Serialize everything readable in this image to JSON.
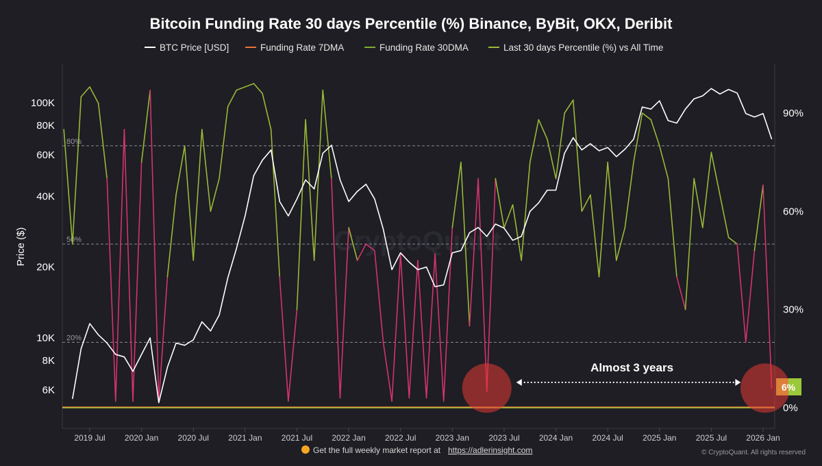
{
  "chart_data": {
    "type": "line",
    "title": "Bitcoin Funding Rate 30 days Percentile (%) Binance, ByBit, OKX, Deribit",
    "ylabel": "Price ($)",
    "y_scale": "log",
    "ylim": [
      5000,
      200000
    ],
    "y2lim": [
      0,
      105
    ],
    "legend": {
      "position": "top-center",
      "entries": [
        {
          "name": "BTC Price [USD]",
          "color": "#ffffff"
        },
        {
          "name": "Funding Rate 7DMA",
          "color": "#e8743b"
        },
        {
          "name": "Funding Rate 30DMA",
          "color": "#7fae2e"
        },
        {
          "name": "Last 30 days Percentile (%) vs All Time",
          "color": "#9ab838"
        }
      ]
    },
    "x_ticks": [
      "2019 Jul",
      "2020 Jan",
      "2020 Jul",
      "2021 Jan",
      "2021 Jul",
      "2022 Jan",
      "2022 Jul",
      "2023 Jan",
      "2023 Jul",
      "2024 Jan",
      "2024 Jul",
      "2025 Jan",
      "2025 Jul",
      "2026 Jan"
    ],
    "y_ticks_left": [
      "100K",
      "80K",
      "60K",
      "40K",
      "20K",
      "10K",
      "8K",
      "6K"
    ],
    "y_ticks_left_values": [
      100000,
      80000,
      60000,
      40000,
      20000,
      10000,
      8000,
      6000
    ],
    "y_ticks_right": [
      "90%",
      "60%",
      "30%",
      "0%"
    ],
    "y_ticks_right_values": [
      90,
      60,
      30,
      0
    ],
    "reference_lines": [
      {
        "label": "80%",
        "value": 80
      },
      {
        "label": "50%",
        "value": 50
      },
      {
        "label": "20%",
        "value": 20
      }
    ],
    "pct_color_above_50": "#9ab838",
    "pct_color_below_50": "#d4336e",
    "btc_price": [
      [
        "2019-05",
        5500
      ],
      [
        "2019-06",
        9000
      ],
      [
        "2019-07",
        11500
      ],
      [
        "2019-08",
        10300
      ],
      [
        "2019-09",
        9500
      ],
      [
        "2019-10",
        8500
      ],
      [
        "2019-11",
        8300
      ],
      [
        "2019-12",
        7200
      ],
      [
        "2020-01",
        8500
      ],
      [
        "2020-02",
        10000
      ],
      [
        "2020-03",
        5300
      ],
      [
        "2020-04",
        7500
      ],
      [
        "2020-05",
        9500
      ],
      [
        "2020-06",
        9300
      ],
      [
        "2020-07",
        9800
      ],
      [
        "2020-08",
        11700
      ],
      [
        "2020-09",
        10700
      ],
      [
        "2020-10",
        12500
      ],
      [
        "2020-11",
        18000
      ],
      [
        "2020-12",
        24000
      ],
      [
        "2021-01",
        33000
      ],
      [
        "2021-02",
        49000
      ],
      [
        "2021-03",
        57000
      ],
      [
        "2021-04",
        63000
      ],
      [
        "2021-05",
        38000
      ],
      [
        "2021-06",
        33000
      ],
      [
        "2021-07",
        39000
      ],
      [
        "2021-08",
        47000
      ],
      [
        "2021-09",
        43000
      ],
      [
        "2021-10",
        61000
      ],
      [
        "2021-11",
        66000
      ],
      [
        "2021-12",
        47000
      ],
      [
        "2022-01",
        38000
      ],
      [
        "2022-02",
        42000
      ],
      [
        "2022-03",
        45000
      ],
      [
        "2022-04",
        39000
      ],
      [
        "2022-05",
        29000
      ],
      [
        "2022-06",
        19500
      ],
      [
        "2022-07",
        23000
      ],
      [
        "2022-08",
        21000
      ],
      [
        "2022-09",
        19500
      ],
      [
        "2022-10",
        20000
      ],
      [
        "2022-11",
        16500
      ],
      [
        "2022-12",
        16800
      ],
      [
        "2023-01",
        23000
      ],
      [
        "2023-02",
        23500
      ],
      [
        "2023-03",
        28000
      ],
      [
        "2023-04",
        29500
      ],
      [
        "2023-05",
        27000
      ],
      [
        "2023-06",
        30500
      ],
      [
        "2023-07",
        29300
      ],
      [
        "2023-08",
        26000
      ],
      [
        "2023-09",
        27000
      ],
      [
        "2023-10",
        34500
      ],
      [
        "2023-11",
        37500
      ],
      [
        "2023-12",
        42500
      ],
      [
        "2024-01",
        42500
      ],
      [
        "2024-02",
        61000
      ],
      [
        "2024-03",
        71000
      ],
      [
        "2024-04",
        63000
      ],
      [
        "2024-05",
        67000
      ],
      [
        "2024-06",
        62500
      ],
      [
        "2024-07",
        64500
      ],
      [
        "2024-08",
        59000
      ],
      [
        "2024-09",
        63500
      ],
      [
        "2024-10",
        70000
      ],
      [
        "2024-11",
        96000
      ],
      [
        "2024-12",
        94000
      ],
      [
        "2025-01",
        102000
      ],
      [
        "2025-02",
        84000
      ],
      [
        "2025-03",
        82000
      ],
      [
        "2025-04",
        94000
      ],
      [
        "2025-05",
        104000
      ],
      [
        "2025-06",
        107000
      ],
      [
        "2025-07",
        115000
      ],
      [
        "2025-08",
        109000
      ],
      [
        "2025-09",
        114000
      ],
      [
        "2025-10",
        110000
      ],
      [
        "2025-11",
        90000
      ],
      [
        "2025-12",
        87000
      ],
      [
        "2026-01",
        90000
      ],
      [
        "2026-02",
        70000
      ]
    ],
    "percentile": [
      [
        "2019-04",
        85
      ],
      [
        "2019-05",
        50
      ],
      [
        "2019-06",
        95
      ],
      [
        "2019-07",
        98
      ],
      [
        "2019-08",
        93
      ],
      [
        "2019-09",
        70
      ],
      [
        "2019-10",
        2
      ],
      [
        "2019-11",
        85
      ],
      [
        "2019-12",
        2
      ],
      [
        "2020-01",
        75
      ],
      [
        "2020-02",
        97
      ],
      [
        "2020-03",
        2
      ],
      [
        "2020-04",
        40
      ],
      [
        "2020-05",
        65
      ],
      [
        "2020-06",
        80
      ],
      [
        "2020-07",
        45
      ],
      [
        "2020-08",
        85
      ],
      [
        "2020-09",
        60
      ],
      [
        "2020-10",
        70
      ],
      [
        "2020-11",
        92
      ],
      [
        "2020-12",
        97
      ],
      [
        "2021-01",
        98
      ],
      [
        "2021-02",
        99
      ],
      [
        "2021-03",
        96
      ],
      [
        "2021-04",
        85
      ],
      [
        "2021-05",
        40
      ],
      [
        "2021-06",
        2
      ],
      [
        "2021-07",
        30
      ],
      [
        "2021-08",
        88
      ],
      [
        "2021-09",
        45
      ],
      [
        "2021-10",
        97
      ],
      [
        "2021-11",
        70
      ],
      [
        "2021-12",
        3
      ],
      [
        "2022-01",
        55
      ],
      [
        "2022-02",
        45
      ],
      [
        "2022-03",
        50
      ],
      [
        "2022-04",
        48
      ],
      [
        "2022-05",
        20
      ],
      [
        "2022-06",
        2
      ],
      [
        "2022-07",
        47
      ],
      [
        "2022-08",
        3
      ],
      [
        "2022-09",
        45
      ],
      [
        "2022-10",
        3
      ],
      [
        "2022-11",
        47
      ],
      [
        "2022-12",
        2
      ],
      [
        "2023-01",
        55
      ],
      [
        "2023-02",
        75
      ],
      [
        "2023-03",
        25
      ],
      [
        "2023-04",
        70
      ],
      [
        "2023-05",
        5
      ],
      [
        "2023-06",
        70
      ],
      [
        "2023-07",
        55
      ],
      [
        "2023-08",
        62
      ],
      [
        "2023-09",
        45
      ],
      [
        "2023-10",
        75
      ],
      [
        "2023-11",
        88
      ],
      [
        "2023-12",
        82
      ],
      [
        "2024-01",
        70
      ],
      [
        "2024-02",
        90
      ],
      [
        "2024-03",
        94
      ],
      [
        "2024-04",
        60
      ],
      [
        "2024-05",
        65
      ],
      [
        "2024-06",
        40
      ],
      [
        "2024-07",
        75
      ],
      [
        "2024-08",
        45
      ],
      [
        "2024-09",
        55
      ],
      [
        "2024-10",
        75
      ],
      [
        "2024-11",
        90
      ],
      [
        "2024-12",
        88
      ],
      [
        "2025-01",
        80
      ],
      [
        "2025-02",
        70
      ],
      [
        "2025-03",
        40
      ],
      [
        "2025-04",
        30
      ],
      [
        "2025-05",
        70
      ],
      [
        "2025-06",
        55
      ],
      [
        "2025-07",
        78
      ],
      [
        "2025-08",
        65
      ],
      [
        "2025-09",
        52
      ],
      [
        "2025-10",
        50
      ],
      [
        "2025-11",
        20
      ],
      [
        "2025-12",
        48
      ],
      [
        "2026-01",
        68
      ],
      [
        "2026-02",
        6
      ]
    ],
    "funding_rate_7dma_baseline": 0,
    "annotations": [
      {
        "text": "Almost 3 years",
        "from": "2023-10",
        "to": "2025-12"
      }
    ],
    "highlight_circles": [
      {
        "x": "2023-05",
        "y": 6
      },
      {
        "x": "2026-02",
        "y": 6
      }
    ],
    "current_value_badge": "6%"
  },
  "footer": {
    "text": "Get the full weekly market report at",
    "link": "https://adlerinsight.com",
    "copyright": "© CryptoQuant. All rights reserved"
  }
}
